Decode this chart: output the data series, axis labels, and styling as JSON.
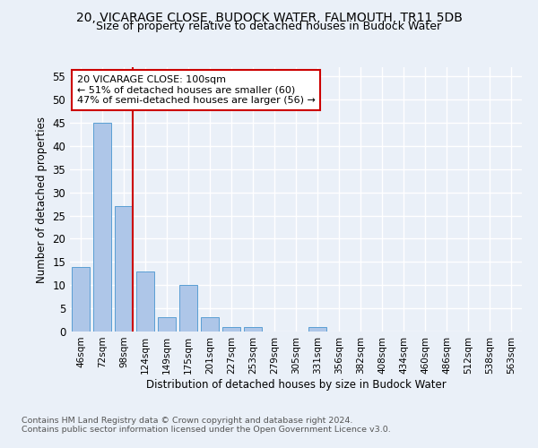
{
  "title": "20, VICARAGE CLOSE, BUDOCK WATER, FALMOUTH, TR11 5DB",
  "subtitle": "Size of property relative to detached houses in Budock Water",
  "xlabel": "Distribution of detached houses by size in Budock Water",
  "ylabel": "Number of detached properties",
  "footnote1": "Contains HM Land Registry data © Crown copyright and database right 2024.",
  "footnote2": "Contains public sector information licensed under the Open Government Licence v3.0.",
  "annotation_line1": "20 VICARAGE CLOSE: 100sqm",
  "annotation_line2": "← 51% of detached houses are smaller (60)",
  "annotation_line3": "47% of semi-detached houses are larger (56) →",
  "bar_labels": [
    "46sqm",
    "72sqm",
    "98sqm",
    "124sqm",
    "149sqm",
    "175sqm",
    "201sqm",
    "227sqm",
    "253sqm",
    "279sqm",
    "305sqm",
    "331sqm",
    "356sqm",
    "382sqm",
    "408sqm",
    "434sqm",
    "460sqm",
    "486sqm",
    "512sqm",
    "538sqm",
    "563sqm"
  ],
  "bar_values": [
    14,
    45,
    27,
    13,
    3,
    10,
    3,
    1,
    1,
    0,
    0,
    1,
    0,
    0,
    0,
    0,
    0,
    0,
    0,
    0,
    0
  ],
  "bar_color": "#aec6e8",
  "bar_edge_color": "#5a9fd4",
  "reference_line_color": "#cc0000",
  "ylim": [
    0,
    57
  ],
  "yticks": [
    0,
    5,
    10,
    15,
    20,
    25,
    30,
    35,
    40,
    45,
    50,
    55
  ],
  "bg_color": "#eaf0f8",
  "plot_bg_color": "#eaf0f8",
  "grid_color": "#ffffff",
  "annotation_box_color": "#cc0000",
  "title_fontsize": 10,
  "subtitle_fontsize": 9
}
